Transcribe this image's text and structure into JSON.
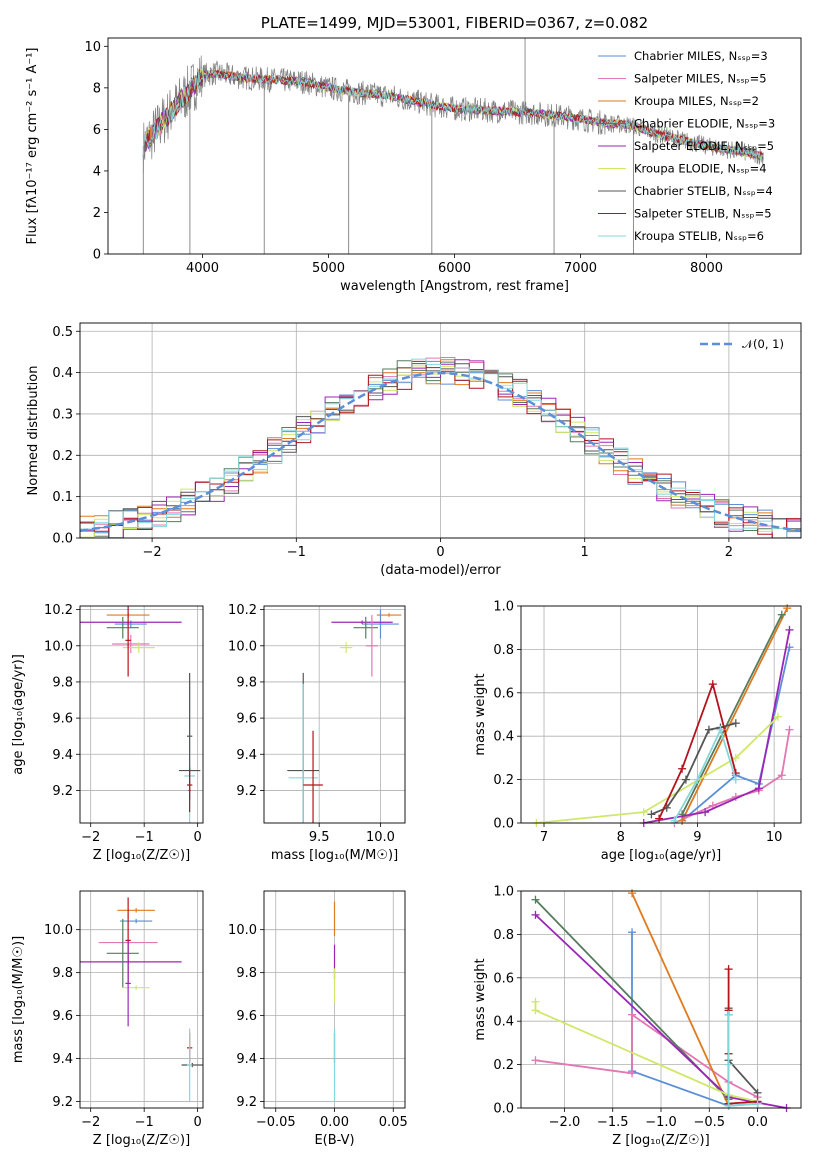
{
  "colors": {
    "Chabrier MILES": "#5b8fd8",
    "Salpeter MILES": "#e377b4",
    "Kroupa MILES": "#e07a1f",
    "Chabrier ELODIE": "#567c5f",
    "Salpeter ELODIE": "#9b26b6",
    "Kroupa ELODIE": "#cfe86a",
    "Chabrier STELIB": "#555555",
    "Salpeter STELIB": "#b3141e",
    "Kroupa STELIB": "#86d7d9",
    "data": "#808080",
    "normal": "#5b8fd8"
  },
  "chart_data": [
    {
      "type": "line",
      "title": "PLATE=1499, MJD=53001, FIBERID=0367, z=0.082",
      "xlabel": "wavelength [Angstrom, rest frame]",
      "ylabel": "Flux [fλ10⁻¹⁷ erg cm⁻² s⁻¹ A⁻¹]",
      "xlim": [
        3250,
        8750
      ],
      "ylim": [
        0,
        10.4
      ],
      "xticks": [
        "4000",
        "5000",
        "6000",
        "7000",
        "8000"
      ],
      "yticks": [
        "0",
        "2",
        "4",
        "6",
        "8",
        "10"
      ],
      "grid": false,
      "legend_position": "top-right",
      "legend": [
        "Chabrier MILES, Nₛₛₚ=3",
        "Salpeter MILES, Nₛₛₚ=5",
        "Kroupa MILES, Nₛₛₚ=2",
        "Chabrier ELODIE, Nₛₛₚ=3",
        "Salpeter ELODIE, Nₛₛₚ=5",
        "Kroupa ELODIE, Nₛₛₚ=4",
        "Chabrier STELIB, Nₛₛₚ=4",
        "Salpeter STELIB, Nₛₛₚ=5",
        "Kroupa STELIB, Nₛₛₚ=6"
      ],
      "continuum": {
        "x": [
          3530,
          3700,
          3900,
          4000,
          4100,
          4300,
          4500,
          4800,
          5000,
          5200,
          5500,
          5800,
          6000,
          6300,
          6600,
          6900,
          7200,
          7400,
          7600,
          8000,
          8300,
          8450
        ],
        "y": [
          5.2,
          6.5,
          7.9,
          8.6,
          8.7,
          8.5,
          8.4,
          8.3,
          8.0,
          7.8,
          7.6,
          7.2,
          7.0,
          6.9,
          6.8,
          6.6,
          6.3,
          6.2,
          5.8,
          5.2,
          4.9,
          4.7
        ]
      },
      "data_spikes": [
        {
          "x": 3530,
          "y": 0
        },
        {
          "x": 3900,
          "y": 0
        },
        {
          "x": 4490,
          "y": 0
        },
        {
          "x": 5160,
          "y": 0
        },
        {
          "x": 5820,
          "y": 0
        },
        {
          "x": 6560,
          "y": 10.4
        },
        {
          "x": 6790,
          "y": 0
        },
        {
          "x": 7420,
          "y": 0
        }
      ]
    },
    {
      "type": "line",
      "xlabel": "(data-model)/error",
      "ylabel": "Normed distribution",
      "xlim": [
        -2.5,
        2.5
      ],
      "ylim": [
        0,
        0.52
      ],
      "xticks": [
        "−2",
        "−1",
        "0",
        "1",
        "2"
      ],
      "yticks": [
        "0.0",
        "0.1",
        "0.2",
        "0.3",
        "0.4",
        "0.5"
      ],
      "grid": true,
      "legend_position": "top-right",
      "legend": [
        "𝒩(0, 1)"
      ],
      "bin_width": 0.1,
      "reference_curve": "standard normal density"
    },
    {
      "type": "scatter",
      "xlabel": "Z [log₁₀(Z/Z☉)]",
      "ylabel": "age  [log₁₀(age/yr)]",
      "xlim": [
        -2.2,
        0.1
      ],
      "ylim": [
        9.02,
        10.22
      ],
      "xticks": [
        "−2",
        "−1",
        "0"
      ],
      "yticks": [
        "9.2",
        "9.4",
        "9.6",
        "9.8",
        "10.0",
        "10.2"
      ],
      "grid": true,
      "points": [
        {
          "model": "Kroupa MILES",
          "x": -1.3,
          "xerr": 0.4,
          "y": 10.17,
          "yerr": 0.01
        },
        {
          "model": "Chabrier MILES",
          "x": -1.25,
          "xerr": 0.3,
          "y": 10.12,
          "yerr": 0.02
        },
        {
          "model": "Salpeter ELODIE",
          "x": -1.3,
          "xerr": 1.0,
          "y": 10.13,
          "yerr": 0.01
        },
        {
          "model": "Chabrier ELODIE",
          "x": -1.4,
          "xerr": 0.3,
          "y": 10.1,
          "yerr": 0.06
        },
        {
          "model": "Salpeter MILES",
          "x": -1.25,
          "xerr": 0.35,
          "y": 10.01,
          "yerr": 0.05
        },
        {
          "model": "Kroupa ELODIE",
          "x": -1.1,
          "xerr": 0.3,
          "y": 9.99,
          "yerr": 0.03
        },
        {
          "model": "Salpeter STELIB",
          "x": -1.3,
          "xerr": 0.05,
          "y": 10.03,
          "yerr": 0.2
        },
        {
          "model": "Chabrier STELIB",
          "x": -0.15,
          "xerr": 0.2,
          "y": 9.31,
          "yerr": 0.02
        },
        {
          "model": "Salpeter STELIB",
          "x": -0.15,
          "xerr": 0.05,
          "y": 9.23,
          "yerr": 0.02
        },
        {
          "model": "Kroupa STELIB",
          "x": -0.15,
          "xerr": 0.1,
          "y": 9.28,
          "yerr": 0.52
        },
        {
          "model": "Chabrier STELIB",
          "x": -0.15,
          "xerr": 0.05,
          "y": 9.5,
          "yerr": 0.35
        },
        {
          "model": "Salpeter STELIB",
          "x": -0.15,
          "xerr": 0.02,
          "y": 9.2,
          "yerr": 0.12
        }
      ]
    },
    {
      "type": "scatter",
      "xlabel": "mass [log₁₀(M/M☉)]",
      "ylabel": "",
      "xlim": [
        9.05,
        10.2
      ],
      "ylim": [
        9.02,
        10.22
      ],
      "xticks": [
        "9.5",
        "10.0"
      ],
      "yticks": [
        "9.2",
        "9.4",
        "9.6",
        "9.8",
        "10.0",
        "10.2"
      ],
      "grid": true,
      "points": [
        {
          "model": "Kroupa MILES",
          "x": 10.07,
          "xerr": 0.1,
          "y": 10.17,
          "yerr": 0.01
        },
        {
          "model": "Chabrier MILES",
          "x": 10.0,
          "xerr": 0.15,
          "y": 10.12,
          "yerr": 0.08
        },
        {
          "model": "Salpeter ELODIE",
          "x": 9.85,
          "xerr": 0.25,
          "y": 10.13,
          "yerr": 0.01
        },
        {
          "model": "Chabrier ELODIE",
          "x": 9.88,
          "xerr": 0.1,
          "y": 10.1,
          "yerr": 0.06
        },
        {
          "model": "Salpeter MILES",
          "x": 9.93,
          "xerr": 0.05,
          "y": 10.0,
          "yerr": 0.17
        },
        {
          "model": "Kroupa ELODIE",
          "x": 9.72,
          "xerr": 0.05,
          "y": 9.99,
          "yerr": 0.03
        },
        {
          "model": "Chabrier STELIB",
          "x": 9.37,
          "xerr": 0.13,
          "y": 9.31,
          "yerr": 0.54
        },
        {
          "model": "Kroupa STELIB",
          "x": 9.37,
          "xerr": 0.12,
          "y": 9.27,
          "yerr": 0.52
        },
        {
          "model": "Salpeter STELIB",
          "x": 9.45,
          "xerr": 0.08,
          "y": 9.23,
          "yerr": 0.3
        }
      ]
    },
    {
      "type": "line",
      "xlabel": "age  [log₁₀(age/yr)]",
      "ylabel": "mass weight",
      "xlim": [
        6.7,
        10.35
      ],
      "ylim": [
        0,
        1.0
      ],
      "xticks": [
        "7",
        "8",
        "9",
        "10"
      ],
      "yticks": [
        "0.0",
        "0.2",
        "0.4",
        "0.6",
        "0.8",
        "1.0"
      ],
      "grid": true,
      "series": [
        {
          "model": "Chabrier MILES",
          "x": [
            8.8,
            9.5,
            9.8,
            10.2
          ],
          "y": [
            0.01,
            0.22,
            0.18,
            0.81
          ]
        },
        {
          "model": "Salpeter MILES",
          "x": [
            8.7,
            9.2,
            9.5,
            9.8,
            10.1,
            10.2
          ],
          "y": [
            0.0,
            0.08,
            0.12,
            0.15,
            0.22,
            0.43
          ]
        },
        {
          "model": "Kroupa MILES",
          "x": [
            8.8,
            10.17
          ],
          "y": [
            0.01,
            0.99
          ]
        },
        {
          "model": "Chabrier ELODIE",
          "x": [
            8.8,
            10.1
          ],
          "y": [
            0.04,
            0.96
          ]
        },
        {
          "model": "Salpeter ELODIE",
          "x": [
            8.3,
            9.1,
            9.8,
            10.2
          ],
          "y": [
            0.0,
            0.05,
            0.16,
            0.89
          ]
        },
        {
          "model": "Kroupa ELODIE",
          "x": [
            6.9,
            8.3,
            9.5,
            10.05
          ],
          "y": [
            0.0,
            0.05,
            0.3,
            0.49
          ]
        },
        {
          "model": "Chabrier STELIB",
          "x": [
            8.4,
            8.6,
            8.85,
            9.15,
            9.3,
            9.5
          ],
          "y": [
            0.04,
            0.07,
            0.2,
            0.43,
            0.44,
            0.46
          ]
        },
        {
          "model": "Salpeter STELIB",
          "x": [
            8.5,
            8.8,
            9.2,
            9.5
          ],
          "y": [
            0.02,
            0.25,
            0.64,
            0.23
          ]
        },
        {
          "model": "Kroupa STELIB",
          "x": [
            8.7,
            9.0,
            9.3,
            9.5
          ],
          "y": [
            0.01,
            0.2,
            0.43,
            0.2
          ]
        }
      ]
    },
    {
      "type": "scatter",
      "xlabel": "Z [log₁₀(Z/Z☉)]",
      "ylabel": "mass [log₁₀(M/M☉)]",
      "xlim": [
        -2.2,
        0.1
      ],
      "ylim": [
        9.17,
        10.18
      ],
      "xticks": [
        "−2",
        "−1",
        "0"
      ],
      "yticks": [
        "9.2",
        "9.4",
        "9.6",
        "9.8",
        "10.0"
      ],
      "grid": true,
      "points": [
        {
          "model": "Kroupa MILES",
          "x": -1.15,
          "xerr": 0.35,
          "y": 10.09,
          "yerr": 0.01
        },
        {
          "model": "Chabrier MILES",
          "x": -1.15,
          "xerr": 0.3,
          "y": 10.04,
          "yerr": 0.01
        },
        {
          "model": "Salpeter MILES",
          "x": -1.3,
          "xerr": 0.55,
          "y": 9.94,
          "yerr": 0.01
        },
        {
          "model": "Salpeter ELODIE",
          "x": -1.3,
          "xerr": 1.0,
          "y": 9.85,
          "yerr": 0.01
        },
        {
          "model": "Chabrier ELODIE",
          "x": -1.4,
          "xerr": 0.3,
          "y": 9.89,
          "yerr": 0.16
        },
        {
          "model": "Kroupa ELODIE",
          "x": -1.15,
          "xerr": 0.25,
          "y": 9.73,
          "yerr": 0.01
        },
        {
          "model": "Salpeter STELIB",
          "x": -1.3,
          "xerr": 0.05,
          "y": 9.95,
          "yerr": 0.2
        },
        {
          "model": "Salpeter ELODIE",
          "x": -1.3,
          "xerr": 0.05,
          "y": 9.75,
          "yerr": 0.2
        },
        {
          "model": "Salpeter STELIB",
          "x": -0.15,
          "xerr": 0.05,
          "y": 9.45,
          "yerr": 0.07
        },
        {
          "model": "Chabrier STELIB",
          "x": -0.1,
          "xerr": 0.2,
          "y": 9.37,
          "yerr": 0.01
        },
        {
          "model": "Kroupa STELIB",
          "x": -0.15,
          "xerr": 0.05,
          "y": 9.37,
          "yerr": 0.17
        }
      ]
    },
    {
      "type": "scatter",
      "xlabel": "E(B-V)",
      "ylabel": "",
      "xlim": [
        -0.06,
        0.06
      ],
      "ylim": [
        9.17,
        10.18
      ],
      "xticks": [
        "−0.05",
        "0.00",
        "0.05"
      ],
      "yticks": [
        "9.2",
        "9.4",
        "9.6",
        "9.8",
        "10.0"
      ],
      "grid": true,
      "points": [
        {
          "model": "Kroupa MILES",
          "x": 0,
          "xerr": 0,
          "y": 10.05,
          "yerr": 0.08
        },
        {
          "model": "Salpeter ELODIE",
          "x": 0,
          "xerr": 0,
          "y": 9.85,
          "yerr": 0.08
        },
        {
          "model": "Kroupa ELODIE",
          "x": 0,
          "xerr": 0,
          "y": 9.74,
          "yerr": 0.08
        },
        {
          "model": "Salpeter STELIB",
          "x": 0,
          "xerr": 0,
          "y": 9.45,
          "yerr": 0.07
        },
        {
          "model": "Kroupa STELIB",
          "x": 0,
          "xerr": 0,
          "y": 9.37,
          "yerr": 0.17
        }
      ]
    },
    {
      "type": "line",
      "xlabel": "Z [log₁₀(Z/Z☉)]",
      "ylabel": "mass weight",
      "xlim": [
        -2.45,
        0.45
      ],
      "ylim": [
        0,
        1.0
      ],
      "xticks": [
        "−2.0",
        "−1.5",
        "−1.0",
        "−0.5",
        "0.0"
      ],
      "yticks": [
        "0.0",
        "0.2",
        "0.4",
        "0.6",
        "0.8",
        "1.0"
      ],
      "grid": true,
      "series": [
        {
          "model": "Chabrier MILES",
          "x": [
            -1.3,
            -1.3,
            -0.3,
            0.0
          ],
          "y": [
            0.81,
            0.17,
            0.01,
            0.02
          ]
        },
        {
          "model": "Salpeter MILES",
          "x": [
            -2.3,
            -1.3,
            -1.3,
            -0.3,
            0.0
          ],
          "y": [
            0.22,
            0.16,
            0.43,
            0.12,
            0.05
          ]
        },
        {
          "model": "Kroupa MILES",
          "x": [
            -1.3,
            -0.3
          ],
          "y": [
            0.99,
            0.01
          ]
        },
        {
          "model": "Chabrier ELODIE",
          "x": [
            -2.3,
            -0.3
          ],
          "y": [
            0.96,
            0.04
          ]
        },
        {
          "model": "Salpeter ELODIE",
          "x": [
            -2.3,
            -0.3,
            0.3
          ],
          "y": [
            0.89,
            0.05,
            0.0
          ]
        },
        {
          "model": "Kroupa ELODIE",
          "x": [
            -2.3,
            -2.3,
            -0.3,
            0.0
          ],
          "y": [
            0.49,
            0.45,
            0.06,
            0.03
          ]
        },
        {
          "model": "Chabrier STELIB",
          "x": [
            -0.3,
            -0.3,
            -0.3,
            0.0
          ],
          "y": [
            0.46,
            0.43,
            0.22,
            0.07
          ]
        },
        {
          "model": "Salpeter STELIB",
          "x": [
            -0.3,
            -0.3,
            -0.3,
            -0.3,
            0.0
          ],
          "y": [
            0.64,
            0.45,
            0.25,
            0.02,
            0.03
          ]
        },
        {
          "model": "Kroupa STELIB",
          "x": [
            -0.3,
            -0.3,
            -0.3,
            0.0
          ],
          "y": [
            0.43,
            0.2,
            0.01,
            0.02
          ]
        }
      ]
    }
  ]
}
